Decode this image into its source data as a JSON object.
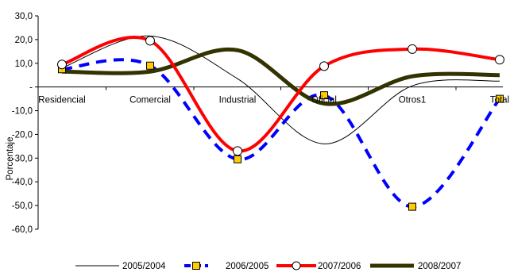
{
  "chart_data": {
    "type": "line",
    "title": "",
    "xlabel": "",
    "ylabel": "Porcentaje",
    "categories": [
      "Residencial",
      "Comercial",
      "Industrial",
      "Oficial",
      "Otros1",
      "Total"
    ],
    "y_ticks": [
      "30,0",
      "20,0",
      "10,0",
      "-",
      "-10,0",
      "-20,0",
      "-30,0",
      "-40,0",
      "-50,0",
      "-60,0"
    ],
    "ylim": [
      -60,
      30
    ],
    "grid": false,
    "smooth": true,
    "legend_position": "bottom",
    "series": [
      {
        "name": "2005/2004",
        "values": [
          8.0,
          21.5,
          3.5,
          -24.0,
          0.5,
          2.5
        ],
        "color": "#000000",
        "line_style": "solid",
        "marker": "none"
      },
      {
        "name": "2006/2005",
        "values": [
          7.5,
          9.0,
          -30.5,
          -3.5,
          -50.5,
          -5.0
        ],
        "color": "#0000ff",
        "line_style": "dashed",
        "marker": "square",
        "marker_color": "#ffcc00"
      },
      {
        "name": "2007/2006",
        "values": [
          9.5,
          19.5,
          -27.0,
          8.8,
          16.0,
          11.5
        ],
        "color": "#ff0000",
        "line_style": "solid",
        "marker": "circle",
        "marker_color": "#ffffff"
      },
      {
        "name": "2008/2007",
        "values": [
          6.5,
          6.5,
          15.5,
          -7.0,
          4.5,
          5.0
        ],
        "color": "#333300",
        "line_style": "solid",
        "marker": "none"
      }
    ]
  }
}
